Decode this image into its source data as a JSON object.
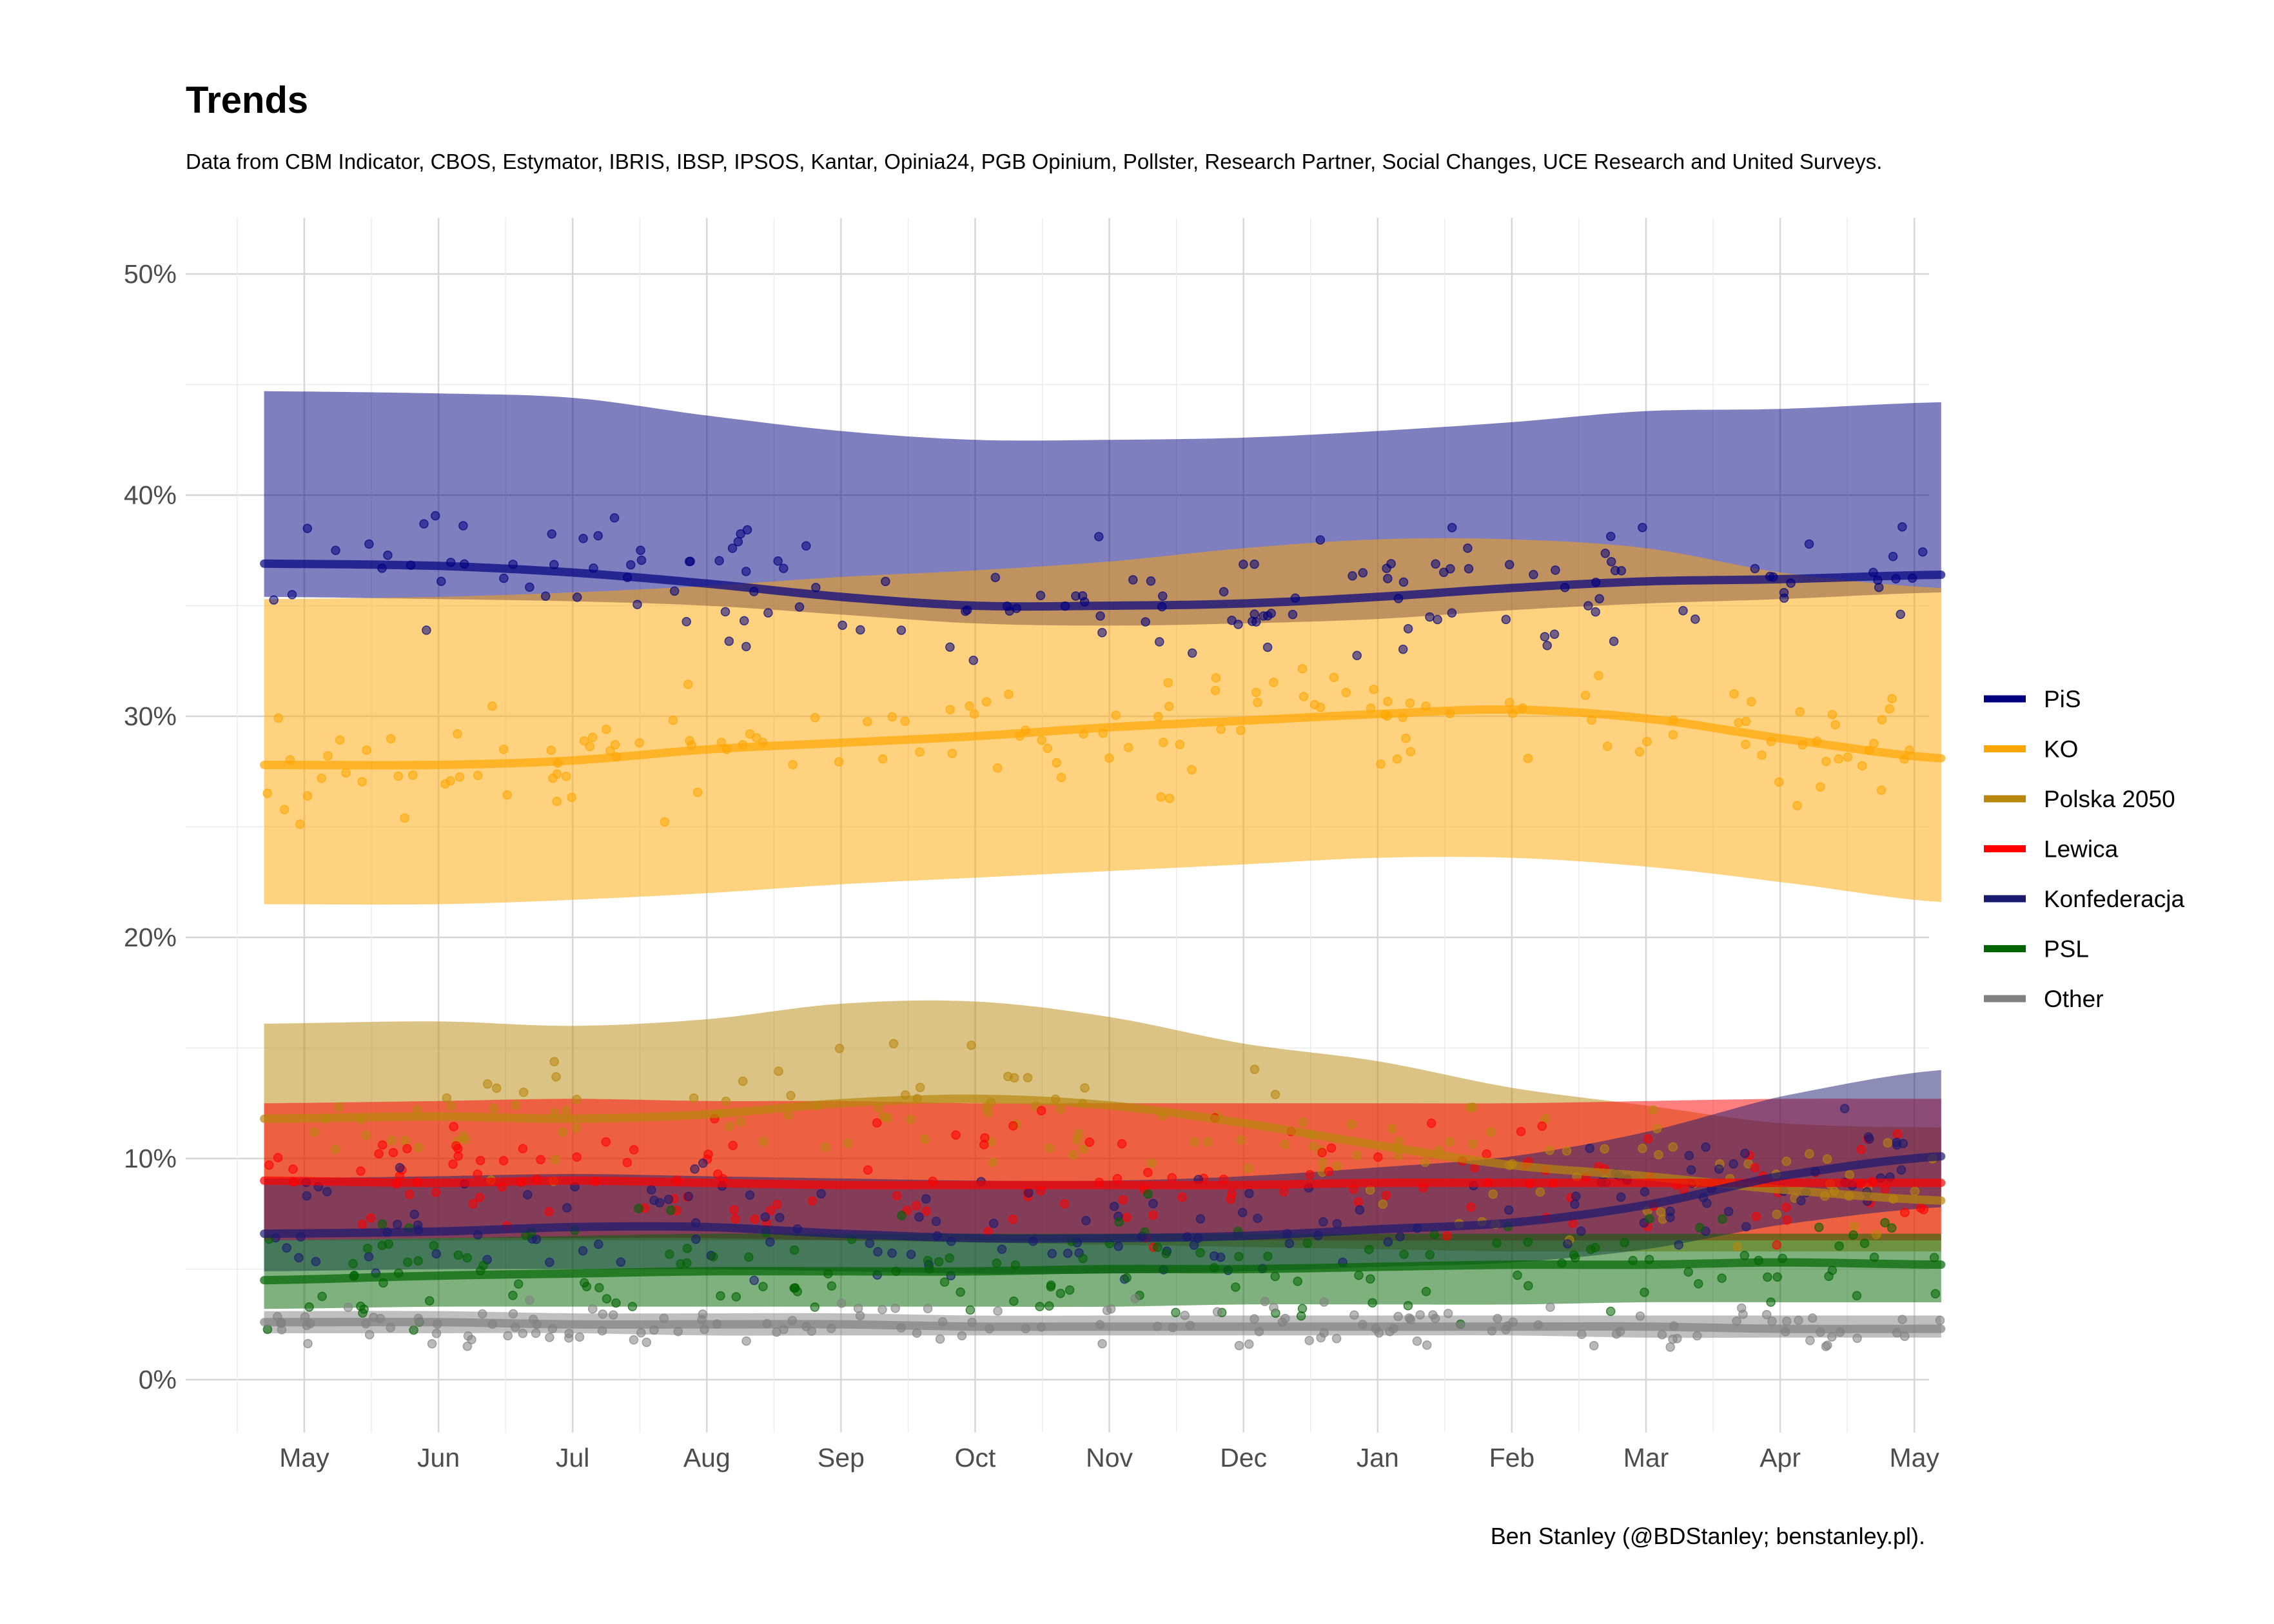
{
  "title": "Trends",
  "subtitle": "Data from CBM Indicator, CBOS, Estymator, IBRIS, IBSP, IPSOS, Kantar, Opinia24, PGB Opinium, Pollster, Research Partner, Social Changes, UCE Research and United Surveys.",
  "caption": "Ben Stanley (@BDStanley; benstanley.pl).",
  "chart_data": {
    "type": "line",
    "title": "Trends",
    "x_tick_labels": [
      "May",
      "Jun",
      "Jul",
      "Aug",
      "Sep",
      "Oct",
      "Nov",
      "Dec",
      "Jan",
      "Feb",
      "Mar",
      "Apr",
      "May"
    ],
    "y_tick_labels": [
      "0%",
      "10%",
      "20%",
      "30%",
      "40%",
      "50%"
    ],
    "ylim": [
      -2.5,
      52.5
    ],
    "xlim_month_index": [
      -0.5,
      12.2
    ],
    "grid": true,
    "legend_position": "right",
    "x_unit": "month index (0 = May, 12 = following May)",
    "y_unit": "percent",
    "series": [
      {
        "name": "PiS",
        "color": "#000080",
        "x": [
          -0.3,
          1,
          2,
          3,
          4,
          5,
          6,
          7,
          8,
          9,
          10,
          11,
          12.2
        ],
        "trend": [
          36.9,
          36.8,
          36.5,
          36.0,
          35.4,
          35.0,
          35.0,
          35.1,
          35.4,
          35.8,
          36.1,
          36.2,
          36.4
        ],
        "upper": [
          44.7,
          44.6,
          44.4,
          43.6,
          42.9,
          42.5,
          42.5,
          42.6,
          42.9,
          43.3,
          43.8,
          43.9,
          44.2
        ],
        "lower": [
          35.4,
          35.3,
          35.2,
          35.0,
          34.6,
          34.2,
          34.1,
          34.2,
          34.4,
          34.8,
          35.1,
          35.3,
          35.6
        ]
      },
      {
        "name": "KO",
        "color": "#FFA500",
        "x": [
          -0.3,
          1,
          2,
          3,
          4,
          5,
          6,
          7,
          8,
          9,
          10,
          11,
          12.2
        ],
        "trend": [
          27.8,
          27.8,
          28.0,
          28.5,
          28.8,
          29.1,
          29.5,
          29.8,
          30.1,
          30.3,
          29.9,
          29.0,
          28.1
        ],
        "upper": [
          35.3,
          35.4,
          35.6,
          35.9,
          36.3,
          36.6,
          37.0,
          37.6,
          38.0,
          38.0,
          37.6,
          36.5,
          35.8
        ],
        "lower": [
          21.5,
          21.5,
          21.7,
          22.0,
          22.4,
          22.7,
          23.0,
          23.3,
          23.6,
          23.6,
          23.2,
          22.5,
          21.6
        ]
      },
      {
        "name": "Polska 2050",
        "color": "#B8860B",
        "x": [
          -0.3,
          1,
          2,
          3,
          4,
          5,
          6,
          7,
          8,
          9,
          10,
          11,
          12.2
        ],
        "trend": [
          11.8,
          11.9,
          11.8,
          12.0,
          12.5,
          12.7,
          12.4,
          11.6,
          10.6,
          9.7,
          9.2,
          8.6,
          8.1
        ],
        "upper": [
          16.1,
          16.2,
          16.0,
          16.3,
          17.0,
          17.1,
          16.4,
          15.2,
          14.4,
          13.2,
          12.4,
          11.6,
          11.4
        ],
        "lower": [
          6.3,
          6.3,
          6.3,
          6.3,
          6.3,
          6.2,
          6.1,
          6.0,
          5.9,
          5.8,
          5.8,
          5.8,
          5.8
        ]
      },
      {
        "name": "Lewica",
        "color": "#FF0000",
        "x": [
          -0.3,
          1,
          2,
          3,
          4,
          5,
          6,
          7,
          8,
          9,
          10,
          11,
          12.2
        ],
        "trend": [
          9.0,
          8.9,
          9.0,
          8.9,
          8.8,
          8.8,
          8.8,
          8.8,
          8.9,
          8.9,
          8.9,
          8.9,
          8.9
        ],
        "upper": [
          12.5,
          12.6,
          12.7,
          12.6,
          12.6,
          12.5,
          12.5,
          12.5,
          12.5,
          12.5,
          12.6,
          12.7,
          12.7
        ],
        "lower": [
          6.3,
          6.4,
          6.4,
          6.4,
          6.3,
          6.3,
          6.3,
          6.3,
          6.3,
          6.3,
          6.3,
          6.3,
          6.3
        ]
      },
      {
        "name": "Konfederacja",
        "color": "#191970",
        "x": [
          -0.3,
          1,
          2,
          3,
          4,
          5,
          6,
          7,
          8,
          9,
          10,
          11,
          12.2
        ],
        "trend": [
          6.6,
          6.7,
          6.9,
          6.9,
          6.6,
          6.4,
          6.4,
          6.5,
          6.8,
          7.1,
          7.9,
          9.2,
          10.1
        ],
        "upper": [
          9.1,
          9.2,
          9.3,
          9.2,
          9.1,
          9.0,
          9.0,
          9.2,
          9.6,
          10.1,
          11.2,
          12.8,
          14.0
        ],
        "lower": [
          4.9,
          5.0,
          5.0,
          5.0,
          4.9,
          4.8,
          4.8,
          4.9,
          5.1,
          5.3,
          5.9,
          7.0,
          7.8
        ]
      },
      {
        "name": "PSL",
        "color": "#006400",
        "x": [
          -0.3,
          1,
          2,
          3,
          4,
          5,
          6,
          7,
          8,
          9,
          10,
          11,
          12.2
        ],
        "trend": [
          4.5,
          4.7,
          4.8,
          4.9,
          4.9,
          4.9,
          5.0,
          5.0,
          5.1,
          5.2,
          5.2,
          5.3,
          5.2
        ],
        "upper": [
          6.3,
          6.4,
          6.5,
          6.6,
          6.6,
          6.6,
          6.6,
          6.6,
          6.6,
          6.6,
          6.6,
          6.6,
          6.6
        ],
        "lower": [
          3.2,
          3.3,
          3.3,
          3.3,
          3.3,
          3.3,
          3.3,
          3.4,
          3.4,
          3.4,
          3.5,
          3.5,
          3.5
        ]
      },
      {
        "name": "Other",
        "color": "#808080",
        "x": [
          -0.3,
          1,
          2,
          3,
          4,
          5,
          6,
          7,
          8,
          9,
          10,
          11,
          12.2
        ],
        "trend": [
          2.6,
          2.6,
          2.5,
          2.5,
          2.5,
          2.4,
          2.4,
          2.4,
          2.4,
          2.4,
          2.4,
          2.3,
          2.3
        ],
        "upper": [
          3.1,
          3.1,
          3.0,
          3.0,
          3.0,
          2.9,
          2.9,
          2.9,
          2.9,
          2.9,
          2.9,
          2.9,
          2.9
        ],
        "lower": [
          2.1,
          2.1,
          2.1,
          2.0,
          2.0,
          2.0,
          2.0,
          2.0,
          2.0,
          2.0,
          1.9,
          1.9,
          1.9
        ]
      }
    ],
    "band_alpha": 0.5,
    "points_per_poll": "scattered individual polls around each trend (jitter ~ ±2.5 pts)"
  }
}
